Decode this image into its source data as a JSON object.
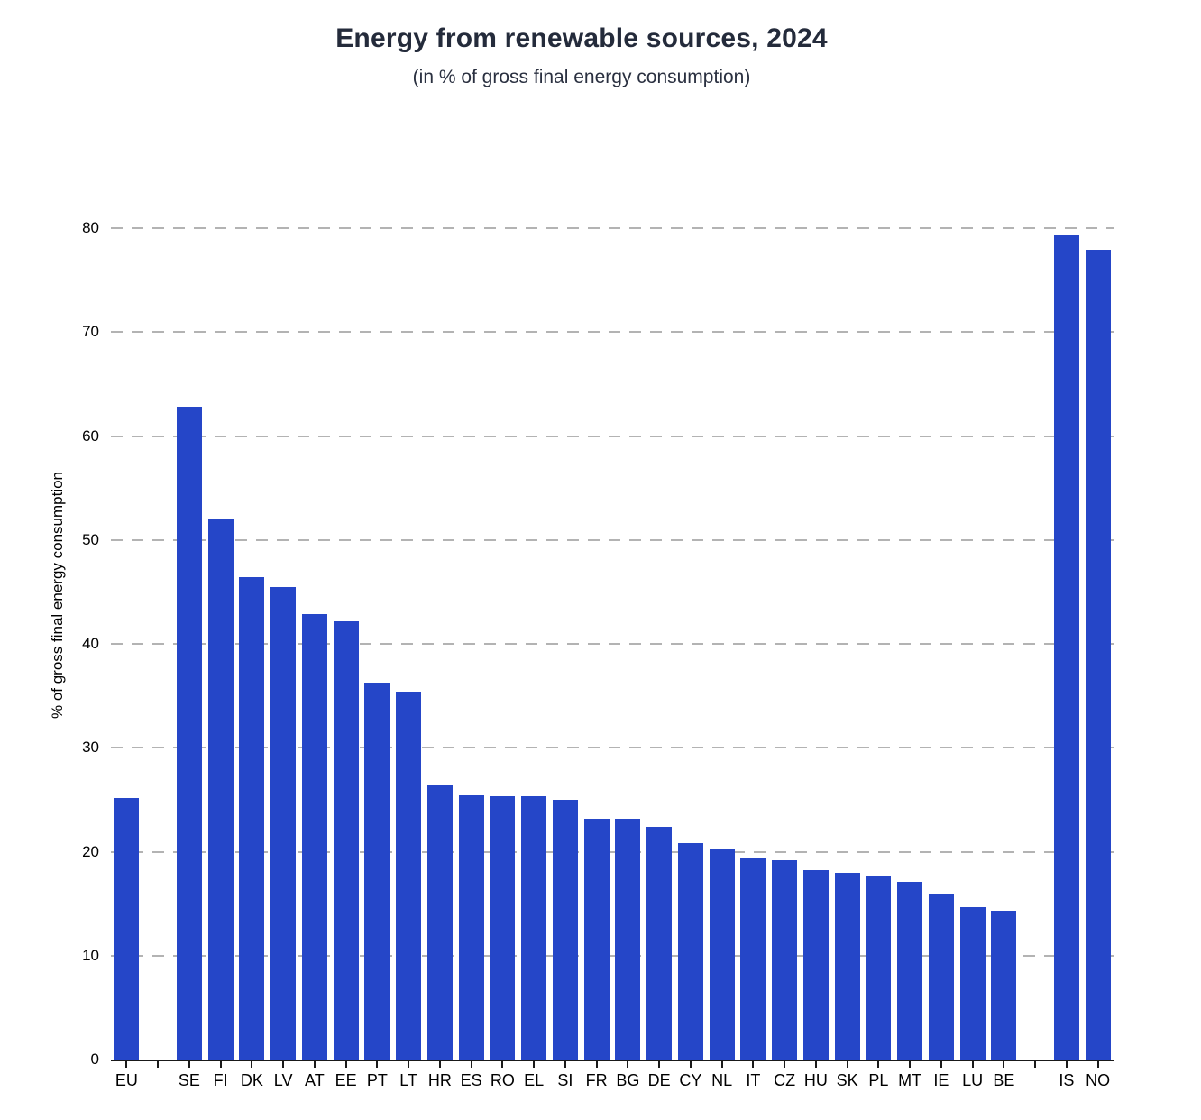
{
  "chart_data": {
    "type": "bar",
    "title": "Energy from renewable sources, 2024",
    "subtitle": "(in % of gross final energy consumption)",
    "ylabel": "% of gross final energy consumption",
    "xlabel": "",
    "ylim": [
      0,
      80
    ],
    "yticks": [
      0,
      10,
      20,
      30,
      40,
      50,
      60,
      70,
      80
    ],
    "grid": "horizontal-dashed",
    "legend_position": "none",
    "bar_color": "#2546c8",
    "axis_color": "#191919",
    "gridline_color": "#b3b3b3",
    "title_color": "#242b3b",
    "categories": [
      "EU",
      "SE",
      "FI",
      "DK",
      "LV",
      "AT",
      "EE",
      "PT",
      "LT",
      "HR",
      "ES",
      "RO",
      "EL",
      "SI",
      "FR",
      "BG",
      "DE",
      "CY",
      "NL",
      "IT",
      "CZ",
      "HU",
      "SK",
      "PL",
      "MT",
      "IE",
      "LU",
      "BE",
      "IS",
      "NO"
    ],
    "values": [
      25.2,
      62.8,
      52.1,
      46.4,
      45.5,
      42.9,
      42.2,
      36.3,
      35.4,
      26.4,
      25.4,
      25.3,
      25.3,
      25.0,
      23.2,
      23.2,
      22.4,
      20.8,
      20.2,
      19.4,
      19.2,
      18.2,
      18.0,
      17.7,
      17.1,
      16.0,
      14.7,
      14.3,
      79.3,
      77.9
    ],
    "spacer_after": [
      "EU",
      "BE"
    ]
  }
}
